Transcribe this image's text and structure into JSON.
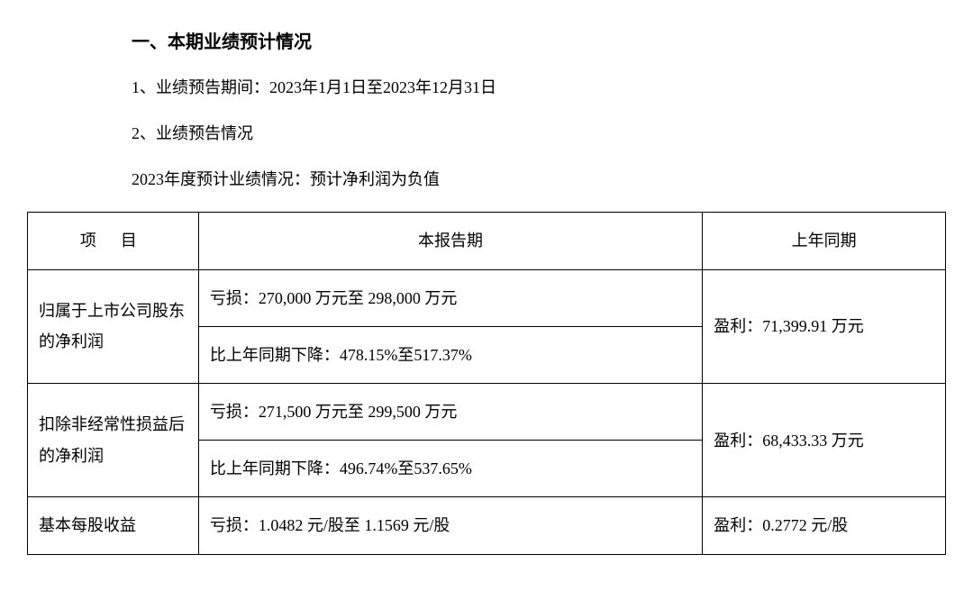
{
  "header": {
    "title": "一、本期业绩预计情况",
    "line1": "1、业绩预告期间：2023年1月1日至2023年12月31日",
    "line2": "2、业绩预告情况",
    "line3": "2023年度预计业绩情况：预计净利润为负值"
  },
  "table": {
    "columns": {
      "item": "项目",
      "this_period": "本报告期",
      "prev_period": "上年同期"
    },
    "rows": [
      {
        "item": "归属于上市公司股东的净利润",
        "this_a": "亏损：270,000 万元至 298,000 万元",
        "this_b": "比上年同期下降：478.15%至517.37%",
        "prev": "盈利：71,399.91 万元"
      },
      {
        "item": "扣除非经常性损益后的净利润",
        "this_a": "亏损：271,500 万元至 299,500 万元",
        "this_b": "比上年同期下降：496.74%至537.65%",
        "prev": "盈利：68,433.33 万元"
      },
      {
        "item": "基本每股收益",
        "this_a": "亏损：1.0482 元/股至 1.1569 元/股",
        "prev": "盈利：0.2772 元/股"
      }
    ],
    "border_color": "#000000",
    "background_color": "#ffffff",
    "text_color": "#000000",
    "font_size_pt": 14
  }
}
